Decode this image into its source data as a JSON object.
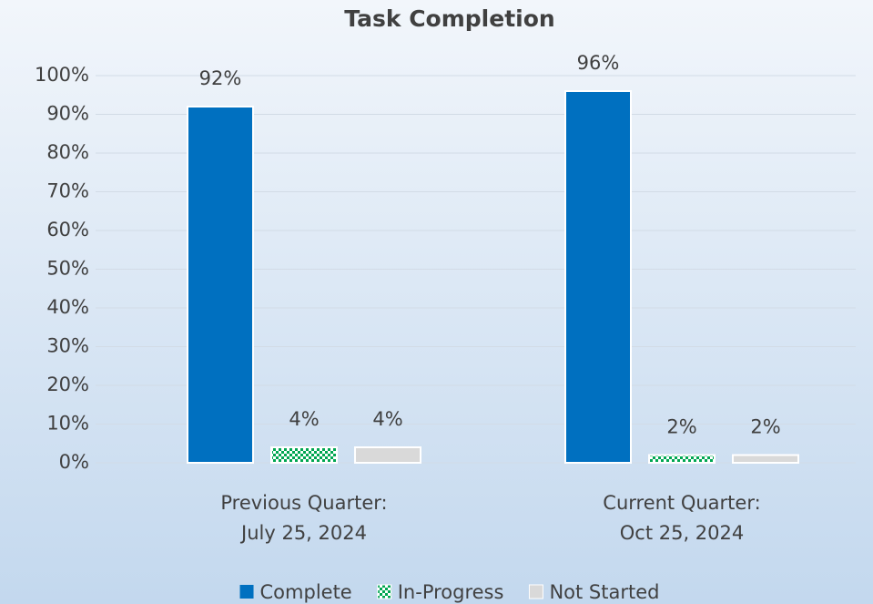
{
  "chart_data": {
    "type": "bar",
    "title": "Task Completion",
    "categories": [
      [
        "Previous Quarter:",
        "July 25, 2024"
      ],
      [
        "Current Quarter:",
        "Oct 25, 2024"
      ]
    ],
    "series": [
      {
        "name": "Complete",
        "color": "#0070c0",
        "values": [
          92,
          96
        ],
        "value_labels": [
          "92%",
          "96%"
        ]
      },
      {
        "name": "In-Progress",
        "color": "#00a651",
        "pattern": "checkerboard",
        "values": [
          4,
          2
        ],
        "value_labels": [
          "4%",
          "2%"
        ]
      },
      {
        "name": "Not Started",
        "color": "#d9d9d9",
        "values": [
          4,
          2
        ],
        "value_labels": [
          "4%",
          "2%"
        ]
      }
    ],
    "ylim": [
      0,
      100
    ],
    "yticks": [
      {
        "value": 0,
        "label": "0%"
      },
      {
        "value": 10,
        "label": "10%"
      },
      {
        "value": 20,
        "label": "20%"
      },
      {
        "value": 30,
        "label": "30%"
      },
      {
        "value": 40,
        "label": "40%"
      },
      {
        "value": 50,
        "label": "50%"
      },
      {
        "value": 60,
        "label": "60%"
      },
      {
        "value": 70,
        "label": "70%"
      },
      {
        "value": 80,
        "label": "80%"
      },
      {
        "value": 90,
        "label": "90%"
      },
      {
        "value": 100,
        "label": "100%"
      }
    ],
    "grid": true,
    "legend": "bottom"
  }
}
